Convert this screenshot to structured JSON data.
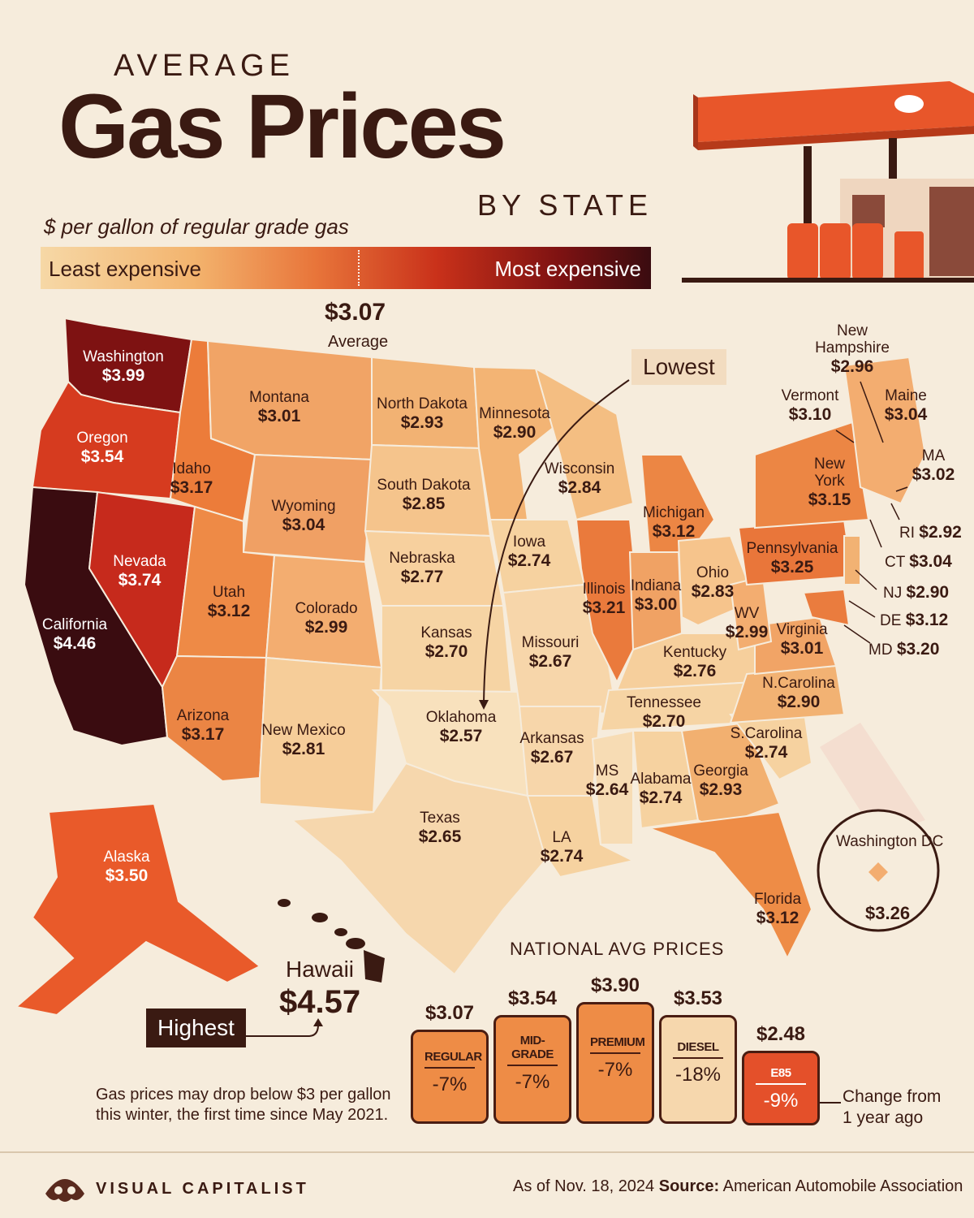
{
  "title": {
    "pre": "AVERAGE",
    "main": "Gas Prices",
    "post": "BY STATE"
  },
  "subtitle": "$ per gallon of regular grade gas",
  "legend": {
    "low": "Least expensive",
    "high": "Most expensive"
  },
  "average": {
    "value": "$3.07",
    "label": "Average"
  },
  "callouts": {
    "lowest": "Lowest",
    "highest": "Highest"
  },
  "colors": {
    "background": "#f6ecdc",
    "darkest": "#3a0c10",
    "dark_red": "#7e1212",
    "red": "#c9311a",
    "orange": "#e8753a",
    "light_orange": "#f3b46e",
    "lightest": "#f6d8a6",
    "text": "#3a1a12"
  },
  "states": {
    "washington": {
      "name": "Washington",
      "price": "$3.99"
    },
    "oregon": {
      "name": "Oregon",
      "price": "$3.54"
    },
    "california": {
      "name": "California",
      "price": "$4.46"
    },
    "nevada": {
      "name": "Nevada",
      "price": "$3.74"
    },
    "idaho": {
      "name": "Idaho",
      "price": "$3.17"
    },
    "montana": {
      "name": "Montana",
      "price": "$3.01"
    },
    "wyoming": {
      "name": "Wyoming",
      "price": "$3.04"
    },
    "utah": {
      "name": "Utah",
      "price": "$3.12"
    },
    "arizona": {
      "name": "Arizona",
      "price": "$3.17"
    },
    "colorado": {
      "name": "Colorado",
      "price": "$2.99"
    },
    "new_mexico": {
      "name": "New Mexico",
      "price": "$2.81"
    },
    "north_dakota": {
      "name": "North Dakota",
      "price": "$2.93"
    },
    "south_dakota": {
      "name": "South Dakota",
      "price": "$2.85"
    },
    "nebraska": {
      "name": "Nebraska",
      "price": "$2.77"
    },
    "kansas": {
      "name": "Kansas",
      "price": "$2.70"
    },
    "oklahoma": {
      "name": "Oklahoma",
      "price": "$2.57"
    },
    "texas": {
      "name": "Texas",
      "price": "$2.65"
    },
    "minnesota": {
      "name": "Minnesota",
      "price": "$2.90"
    },
    "iowa": {
      "name": "Iowa",
      "price": "$2.74"
    },
    "missouri": {
      "name": "Missouri",
      "price": "$2.67"
    },
    "arkansas": {
      "name": "Arkansas",
      "price": "$2.67"
    },
    "louisiana": {
      "name": "LA",
      "price": "$2.74"
    },
    "wisconsin": {
      "name": "Wisconsin",
      "price": "$2.84"
    },
    "illinois": {
      "name": "Illinois",
      "price": "$3.21"
    },
    "michigan": {
      "name": "Michigan",
      "price": "$3.12"
    },
    "indiana": {
      "name": "Indiana",
      "price": "$3.00"
    },
    "ohio": {
      "name": "Ohio",
      "price": "$2.83"
    },
    "kentucky": {
      "name": "Kentucky",
      "price": "$2.76"
    },
    "tennessee": {
      "name": "Tennessee",
      "price": "$2.70"
    },
    "mississippi": {
      "name": "MS",
      "price": "$2.64"
    },
    "alabama": {
      "name": "Alabama",
      "price": "$2.74"
    },
    "georgia": {
      "name": "Georgia",
      "price": "$2.93"
    },
    "florida": {
      "name": "Florida",
      "price": "$3.12"
    },
    "south_carolina": {
      "name": "S.Carolina",
      "price": "$2.74"
    },
    "north_carolina": {
      "name": "N.Carolina",
      "price": "$2.90"
    },
    "virginia": {
      "name": "Virginia",
      "price": "$3.01"
    },
    "west_virginia": {
      "name": "WV",
      "price": "$2.99"
    },
    "pennsylvania": {
      "name": "Pennsylvania",
      "price": "$3.25"
    },
    "new_york": {
      "name": "New York",
      "price": "$3.15"
    },
    "vermont": {
      "name": "Vermont",
      "price": "$3.10"
    },
    "new_hampshire": {
      "name": "New Hampshire",
      "price": "$2.96"
    },
    "maine": {
      "name": "Maine",
      "price": "$3.04"
    },
    "massachusetts": {
      "name": "MA",
      "price": "$3.02"
    },
    "rhode_island": {
      "name": "RI",
      "price": "$2.92"
    },
    "connecticut": {
      "name": "CT",
      "price": "$3.04"
    },
    "new_jersey": {
      "name": "NJ",
      "price": "$2.90"
    },
    "delaware": {
      "name": "DE",
      "price": "$3.12"
    },
    "maryland": {
      "name": "MD",
      "price": "$3.20"
    },
    "alaska": {
      "name": "Alaska",
      "price": "$3.50"
    },
    "hawaii": {
      "name": "Hawaii",
      "price": "$4.57"
    },
    "dc": {
      "name": "Washington DC",
      "price": "$3.26"
    }
  },
  "national": {
    "title": "NATIONAL AVG PRICES",
    "grades": [
      {
        "name": "REGULAR",
        "price": "$3.07",
        "change": "-7%"
      },
      {
        "name": "MID-GRADE",
        "price": "$3.54",
        "change": "-7%"
      },
      {
        "name": "PREMIUM",
        "price": "$3.90",
        "change": "-7%"
      },
      {
        "name": "DIESEL",
        "price": "$3.53",
        "change": "-18%"
      },
      {
        "name": "E85",
        "price": "$2.48",
        "change": "-9%"
      }
    ],
    "change_note": "Change from 1 year ago"
  },
  "note": "Gas prices may drop below $3 per gallon this winter, the first time since May 2021.",
  "footer": {
    "brand": "VISUAL CAPITALIST",
    "as_of": "As of Nov. 18, 2024",
    "source_label": "Source:",
    "source": "American Automobile Association"
  }
}
